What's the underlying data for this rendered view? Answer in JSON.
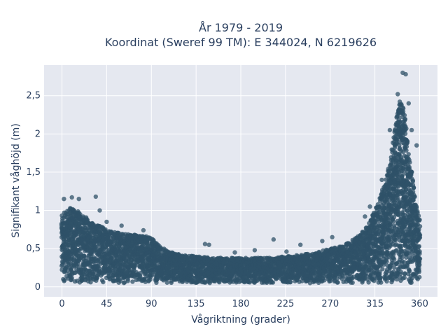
{
  "chart_data": {
    "type": "scatter",
    "title_line1": "År 1979 - 2019",
    "title_line2": "Koordinat (Sweref 99 TM): E 344024, N 6219626",
    "xlabel": "Vågriktning (grader)",
    "ylabel": "Signifikant våghöjd (m)",
    "xlim": [
      -18,
      378
    ],
    "ylim": [
      -0.13,
      2.9
    ],
    "x_ticks": [
      0,
      45,
      90,
      135,
      180,
      225,
      270,
      315,
      360
    ],
    "x_tick_labels": [
      "0",
      "45",
      "90",
      "135",
      "180",
      "225",
      "270",
      "315",
      "360"
    ],
    "y_ticks": [
      0,
      0.5,
      1,
      1.5,
      2,
      2.5
    ],
    "y_tick_labels": [
      "0",
      "0,5",
      "1",
      "1,5",
      "2",
      "2,5"
    ],
    "grid": true,
    "marker_color": "#2f5268",
    "plot_bg": "#e5e8f0",
    "envelope": {
      "direction": [
        0,
        10,
        20,
        30,
        45,
        60,
        75,
        90,
        100,
        110,
        120,
        135,
        150,
        165,
        180,
        195,
        210,
        225,
        240,
        255,
        270,
        285,
        300,
        310,
        320,
        330,
        335,
        340,
        345,
        350,
        355,
        360
      ],
      "max_height": [
        0.95,
        1.05,
        0.95,
        0.85,
        0.75,
        0.7,
        0.68,
        0.65,
        0.52,
        0.45,
        0.42,
        0.4,
        0.38,
        0.38,
        0.38,
        0.38,
        0.38,
        0.4,
        0.42,
        0.45,
        0.5,
        0.55,
        0.68,
        0.85,
        1.15,
        1.6,
        2.1,
        2.45,
        2.3,
        1.7,
        1.2,
        0.9
      ],
      "min_height": 0.05
    },
    "outliers": [
      {
        "x": 2,
        "y": 1.15
      },
      {
        "x": 10,
        "y": 1.17
      },
      {
        "x": 17,
        "y": 1.15
      },
      {
        "x": 34,
        "y": 1.18
      },
      {
        "x": 38,
        "y": 1.0
      },
      {
        "x": 45,
        "y": 0.85
      },
      {
        "x": 60,
        "y": 0.8
      },
      {
        "x": 82,
        "y": 0.74
      },
      {
        "x": 144,
        "y": 0.56
      },
      {
        "x": 148,
        "y": 0.55
      },
      {
        "x": 174,
        "y": 0.45
      },
      {
        "x": 194,
        "y": 0.48
      },
      {
        "x": 213,
        "y": 0.62
      },
      {
        "x": 226,
        "y": 0.46
      },
      {
        "x": 240,
        "y": 0.55
      },
      {
        "x": 262,
        "y": 0.6
      },
      {
        "x": 272,
        "y": 0.65
      },
      {
        "x": 305,
        "y": 0.92
      },
      {
        "x": 310,
        "y": 1.05
      },
      {
        "x": 322,
        "y": 1.4
      },
      {
        "x": 330,
        "y": 2.05
      },
      {
        "x": 338,
        "y": 2.52
      },
      {
        "x": 343,
        "y": 2.8
      },
      {
        "x": 346,
        "y": 2.78
      },
      {
        "x": 349,
        "y": 2.4
      },
      {
        "x": 352,
        "y": 2.05
      },
      {
        "x": 357,
        "y": 1.85
      }
    ]
  }
}
